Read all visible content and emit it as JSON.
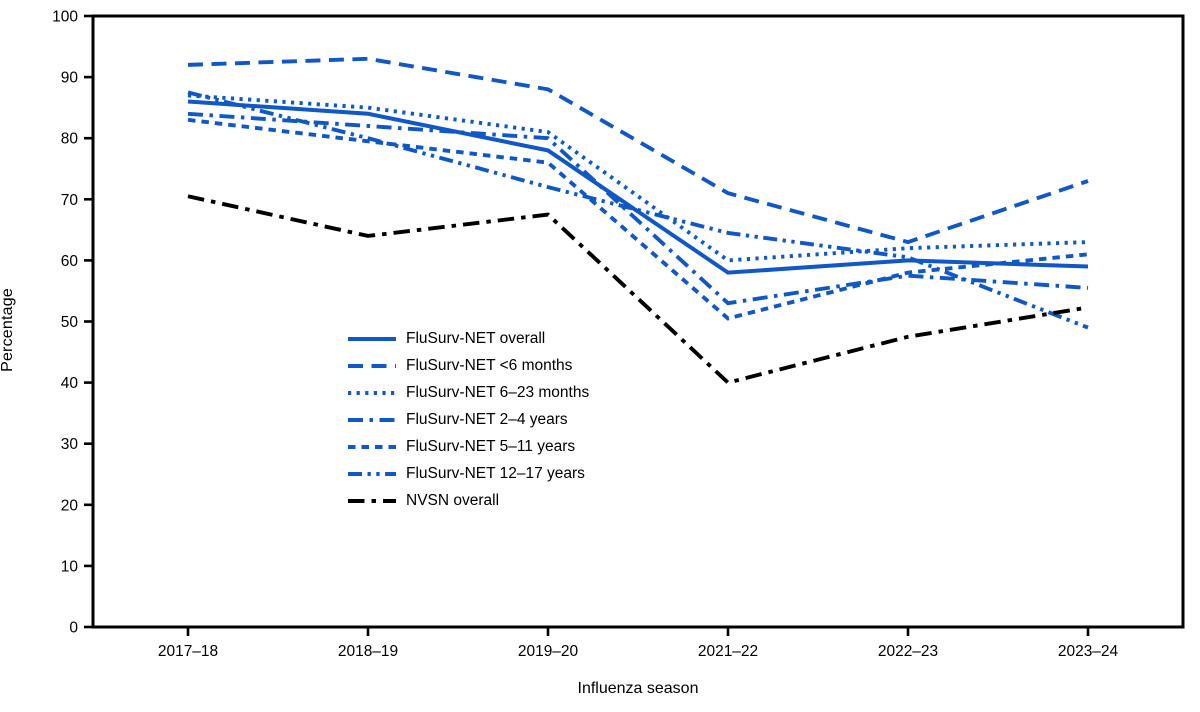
{
  "figure": {
    "background": "#ffffff",
    "axis_color": "#000000",
    "accent_blue": "#1058C8",
    "accent_black": "#000000"
  },
  "chart_data": {
    "type": "line",
    "title": "",
    "xlabel": "Influenza season",
    "ylabel": "Percentage",
    "ylim": [
      0,
      100
    ],
    "ytick_step": 10,
    "grid": false,
    "legend_position": "inside-center-left",
    "categories": [
      "2017–18",
      "2018–19",
      "2019–20",
      "2021–22",
      "2022–23",
      "2023–24"
    ],
    "series": [
      {
        "name": "FluSurv-NET overall",
        "color": "#1058C8",
        "dash": "solid",
        "values": [
          86,
          84,
          78,
          58,
          60,
          59
        ]
      },
      {
        "name": "FluSurv-NET <6 months",
        "color": "#1058C8",
        "dash": "long-dash",
        "values": [
          92,
          93,
          88,
          71,
          63,
          73
        ]
      },
      {
        "name": "FluSurv-NET 6–23 months",
        "color": "#1058C8",
        "dash": "dotted",
        "values": [
          87,
          85,
          81,
          60,
          62,
          63
        ]
      },
      {
        "name": "FluSurv-NET 2–4 years",
        "color": "#1058C8",
        "dash": "dash-dot",
        "values": [
          84,
          82,
          80,
          53,
          57.5,
          55.5
        ]
      },
      {
        "name": "FluSurv-NET 5–11 years",
        "color": "#1058C8",
        "dash": "short-dash",
        "values": [
          83,
          79.5,
          76,
          50.5,
          58,
          61
        ]
      },
      {
        "name": "FluSurv-NET 12–17 years",
        "color": "#1058C8",
        "dash": "dash-dot-dot",
        "values": [
          87.5,
          80,
          72,
          64.5,
          60.5,
          49
        ]
      },
      {
        "name": "NVSN overall",
        "color": "#000000",
        "dash": "long-dash-dot",
        "values": [
          70.5,
          64,
          67.5,
          40,
          47.5,
          52.3
        ]
      }
    ]
  }
}
